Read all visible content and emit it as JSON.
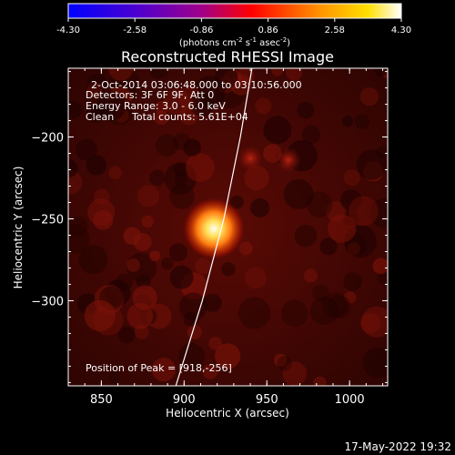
{
  "colorbar": {
    "ticks": [
      "-4.30",
      "-2.58",
      "-0.86",
      "0.86",
      "2.58",
      "4.30"
    ],
    "units": "(photons cm",
    "units_sup1": "-2",
    "units_mid": " s",
    "units_sup2": "-1",
    "units_mid2": " asec",
    "units_sup3": "-2",
    "units_end": ")"
  },
  "annotations": {
    "time_range": "2-Oct-2014 03:06:48.000 to 03:10:56.000",
    "detectors": "Detectors: 3F 6F 9F, Att 0",
    "energy": "Energy Range: 3.0 - 6.0 keV",
    "clean": "Clean",
    "counts": "Total counts: 5.61E+04",
    "peak": "Position of Peak = [918,-256]"
  },
  "footer_timestamp": "17-May-2022 19:32",
  "chart_data": {
    "type": "heatmap",
    "title": "Reconstructed RHESSI Image",
    "xlabel": "Heliocentric X (arcsec)",
    "ylabel": "Heliocentric Y (arcsec)",
    "xlim": [
      830,
      1023
    ],
    "ylim": [
      -352,
      -158
    ],
    "xticks": [
      850,
      900,
      950,
      1000
    ],
    "yticks": [
      -200,
      -250,
      -300
    ],
    "colormap": "hot",
    "clim": [
      -4.3,
      4.3
    ],
    "peak": [
      918,
      -256
    ],
    "sources": [
      {
        "x": 918,
        "y": -256,
        "intensity": 4.3
      },
      {
        "x": 940,
        "y": -213,
        "intensity": 1.2
      },
      {
        "x": 963,
        "y": -214,
        "intensity": 0.9
      }
    ],
    "limb_curve": [
      [
        895,
        -352
      ],
      [
        911,
        -300
      ],
      [
        924,
        -250
      ],
      [
        934,
        -200
      ],
      [
        941,
        -158
      ]
    ]
  }
}
